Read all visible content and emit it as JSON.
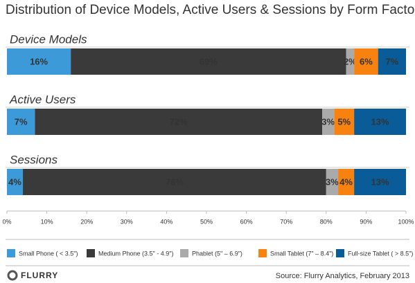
{
  "chart_data": {
    "type": "stacked-bar",
    "orientation": "horizontal",
    "title": "Distribution of Device Models, Active Users & Sessions by Form Factor",
    "categories": [
      "Device Models",
      "Active Users",
      "Sessions"
    ],
    "series": [
      {
        "name": "Small Phone ( < 3.5\")",
        "color": "#3d9ad8",
        "values": [
          16,
          7,
          4
        ],
        "value_labels": [
          "16%",
          "7%",
          "4%"
        ]
      },
      {
        "name": "Medium Phone (3.5\" - 4.9\")",
        "color": "#3a3a3a",
        "values": [
          69,
          72,
          76
        ],
        "value_labels": [
          "69%",
          "72%",
          "76%"
        ]
      },
      {
        "name": "Phablet (5\" – 6.9\")",
        "color": "#aaaaaa",
        "values": [
          2,
          3,
          3
        ],
        "value_labels": [
          "2%",
          "3%",
          "3%"
        ]
      },
      {
        "name": "Small Tablet (7\" – 8.4\")",
        "color": "#f7820f",
        "values": [
          6,
          5,
          4
        ],
        "value_labels": [
          "6%",
          "5%",
          "4%"
        ]
      },
      {
        "name": "Full-size Tablet ( > 8.5\")",
        "color": "#0a5c99",
        "values": [
          7,
          13,
          13
        ],
        "value_labels": [
          "7%",
          "13%",
          "13%"
        ]
      }
    ],
    "xlim": [
      0,
      100
    ],
    "xticks": [
      {
        "value": 0,
        "label": "0%"
      },
      {
        "value": 10,
        "label": "10%"
      },
      {
        "value": 20,
        "label": "20%"
      },
      {
        "value": 30,
        "label": "30%"
      },
      {
        "value": 40,
        "label": "40%"
      },
      {
        "value": 50,
        "label": "50%"
      },
      {
        "value": 60,
        "label": "60%"
      },
      {
        "value": 70,
        "label": "70%"
      },
      {
        "value": 80,
        "label": "80%"
      },
      {
        "value": 90,
        "label": "90%"
      },
      {
        "value": 100,
        "label": "100%"
      }
    ],
    "legend": "bottom"
  },
  "footer": {
    "logo": "FLURRY",
    "source": "Source: Flurry Analytics, February 2013"
  }
}
